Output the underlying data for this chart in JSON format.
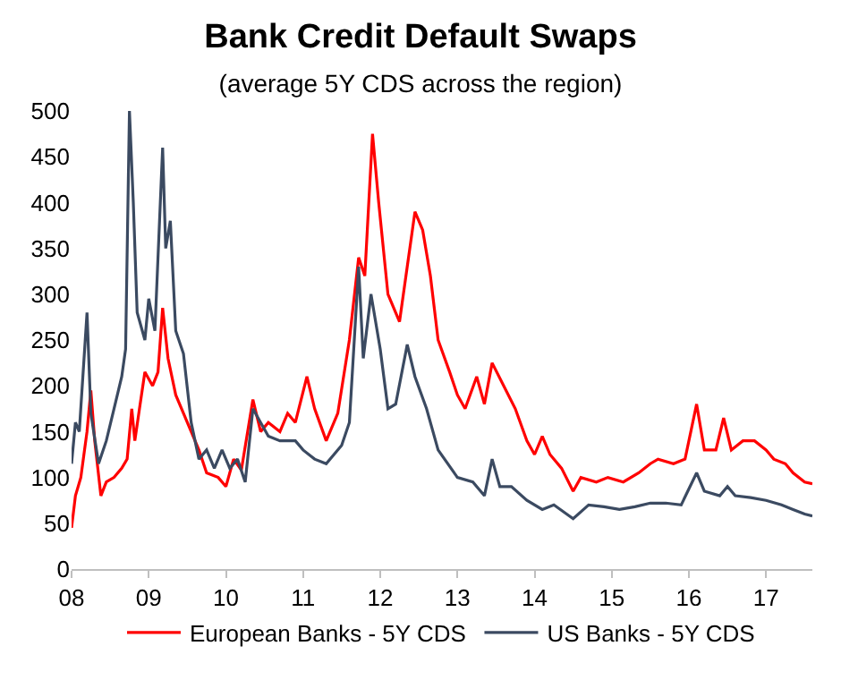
{
  "chart_data": {
    "type": "line",
    "title": "Bank Credit Default Swaps",
    "subtitle": "(average 5Y CDS across the region)",
    "xlim": [
      2008,
      2017.6
    ],
    "xticks": [
      {
        "value": 2008,
        "label": "08"
      },
      {
        "value": 2009,
        "label": "09"
      },
      {
        "value": 2010,
        "label": "10"
      },
      {
        "value": 2011,
        "label": "11"
      },
      {
        "value": 2012,
        "label": "12"
      },
      {
        "value": 2013,
        "label": "13"
      },
      {
        "value": 2014,
        "label": "14"
      },
      {
        "value": 2015,
        "label": "15"
      },
      {
        "value": 2016,
        "label": "16"
      },
      {
        "value": 2017,
        "label": "17"
      }
    ],
    "ylim": [
      0,
      500
    ],
    "yticks": [
      0,
      50,
      100,
      150,
      200,
      250,
      300,
      350,
      400,
      450,
      500
    ],
    "grid": false,
    "legend": "bottom",
    "marker": "none",
    "line_style": "solid",
    "series": [
      {
        "name": "European Banks - 5Y CDS",
        "color": "#ff0000",
        "x": [
          2008.0,
          2008.05,
          2008.12,
          2008.2,
          2008.25,
          2008.3,
          2008.38,
          2008.45,
          2008.55,
          2008.65,
          2008.72,
          2008.78,
          2008.82,
          2008.88,
          2008.95,
          2009.05,
          2009.12,
          2009.18,
          2009.25,
          2009.35,
          2009.45,
          2009.55,
          2009.65,
          2009.75,
          2009.9,
          2010.0,
          2010.1,
          2010.2,
          2010.35,
          2010.45,
          2010.55,
          2010.7,
          2010.8,
          2010.9,
          2011.05,
          2011.15,
          2011.3,
          2011.45,
          2011.6,
          2011.72,
          2011.8,
          2011.9,
          2011.98,
          2012.1,
          2012.25,
          2012.35,
          2012.45,
          2012.55,
          2012.65,
          2012.75,
          2012.9,
          2013.0,
          2013.1,
          2013.25,
          2013.35,
          2013.45,
          2013.6,
          2013.75,
          2013.9,
          2014.0,
          2014.1,
          2014.2,
          2014.35,
          2014.5,
          2014.6,
          2014.8,
          2014.95,
          2015.15,
          2015.35,
          2015.5,
          2015.6,
          2015.8,
          2015.95,
          2016.1,
          2016.2,
          2016.35,
          2016.45,
          2016.55,
          2016.7,
          2016.85,
          2017.0,
          2017.1,
          2017.25,
          2017.35,
          2017.5,
          2017.6
        ],
        "values": [
          45,
          80,
          100,
          150,
          195,
          140,
          80,
          95,
          100,
          110,
          120,
          175,
          140,
          175,
          215,
          200,
          215,
          285,
          230,
          190,
          170,
          150,
          130,
          105,
          100,
          90,
          120,
          108,
          185,
          150,
          160,
          150,
          170,
          160,
          210,
          175,
          140,
          170,
          250,
          340,
          320,
          475,
          400,
          300,
          270,
          330,
          390,
          370,
          320,
          250,
          215,
          190,
          175,
          210,
          180,
          225,
          200,
          175,
          140,
          125,
          145,
          125,
          110,
          85,
          100,
          95,
          100,
          95,
          105,
          115,
          120,
          115,
          120,
          180,
          130,
          130,
          165,
          130,
          140,
          140,
          130,
          120,
          115,
          105,
          95,
          93
        ]
      },
      {
        "name": "US Banks - 5Y CDS",
        "color": "#3b4a61",
        "x": [
          2008.0,
          2008.05,
          2008.1,
          2008.2,
          2008.25,
          2008.35,
          2008.45,
          2008.55,
          2008.65,
          2008.7,
          2008.75,
          2008.8,
          2008.85,
          2008.95,
          2009.0,
          2009.08,
          2009.18,
          2009.22,
          2009.28,
          2009.35,
          2009.45,
          2009.55,
          2009.65,
          2009.75,
          2009.85,
          2009.95,
          2010.05,
          2010.15,
          2010.25,
          2010.35,
          2010.45,
          2010.55,
          2010.7,
          2010.9,
          2011.0,
          2011.15,
          2011.3,
          2011.5,
          2011.6,
          2011.72,
          2011.78,
          2011.88,
          2012.0,
          2012.1,
          2012.2,
          2012.35,
          2012.45,
          2012.6,
          2012.75,
          2013.0,
          2013.2,
          2013.35,
          2013.45,
          2013.55,
          2013.7,
          2013.9,
          2014.1,
          2014.25,
          2014.5,
          2014.7,
          2014.9,
          2015.1,
          2015.3,
          2015.5,
          2015.7,
          2015.9,
          2016.1,
          2016.2,
          2016.4,
          2016.5,
          2016.6,
          2016.8,
          2017.0,
          2017.2,
          2017.35,
          2017.5,
          2017.6
        ],
        "values": [
          115,
          160,
          150,
          280,
          170,
          115,
          140,
          175,
          210,
          240,
          500,
          400,
          280,
          250,
          295,
          260,
          460,
          350,
          380,
          260,
          235,
          160,
          120,
          130,
          110,
          130,
          110,
          120,
          95,
          175,
          160,
          145,
          140,
          140,
          130,
          120,
          115,
          135,
          160,
          330,
          230,
          300,
          240,
          175,
          180,
          245,
          210,
          175,
          130,
          100,
          95,
          80,
          120,
          90,
          90,
          75,
          65,
          70,
          55,
          70,
          68,
          65,
          68,
          72,
          72,
          70,
          105,
          85,
          80,
          90,
          80,
          78,
          75,
          70,
          65,
          60,
          58
        ]
      }
    ]
  }
}
